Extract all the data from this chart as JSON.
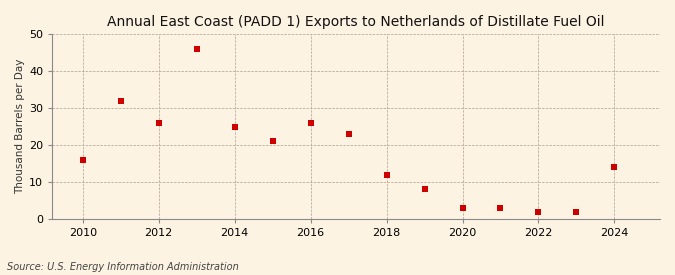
{
  "title": "Annual East Coast (PADD 1) Exports to Netherlands of Distillate Fuel Oil",
  "ylabel": "Thousand Barrels per Day",
  "source": "Source: U.S. Energy Information Administration",
  "background_color": "#fdf3e3",
  "plot_bg_color": "#fdf3e3",
  "years": [
    2010,
    2011,
    2012,
    2013,
    2014,
    2015,
    2016,
    2017,
    2018,
    2019,
    2020,
    2021,
    2022,
    2023,
    2024
  ],
  "values": [
    16,
    32,
    26,
    46,
    25,
    21,
    26,
    23,
    12,
    8,
    3,
    3,
    2,
    2,
    14
  ],
  "marker_color": "#cc0000",
  "marker_size": 18,
  "ylim": [
    0,
    50
  ],
  "yticks": [
    0,
    10,
    20,
    30,
    40,
    50
  ],
  "xticks": [
    2010,
    2012,
    2014,
    2016,
    2018,
    2020,
    2022,
    2024
  ],
  "xlim": [
    2009.2,
    2025.2
  ],
  "title_fontsize": 10,
  "ylabel_fontsize": 7.5,
  "tick_fontsize": 8,
  "source_fontsize": 7
}
